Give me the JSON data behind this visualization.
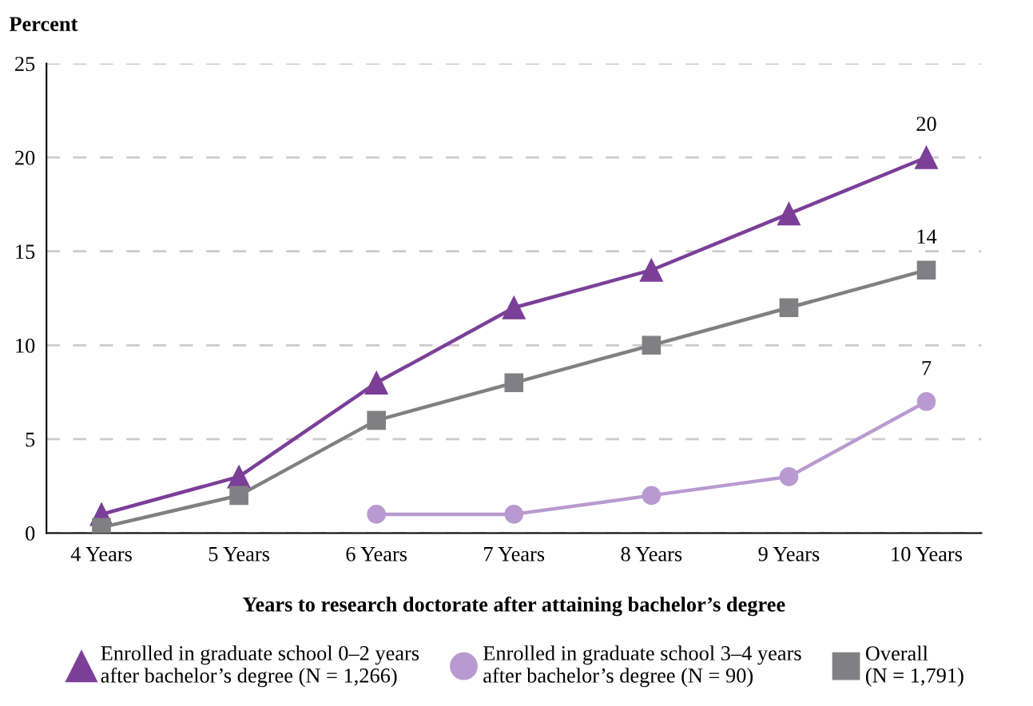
{
  "chart_data": {
    "type": "line",
    "ylabel": "Percent",
    "xlabel": "Years to research doctorate after attaining bachelor’s degree",
    "categories": [
      "4 Years",
      "5 Years",
      "6 Years",
      "7 Years",
      "8 Years",
      "9 Years",
      "10 Years"
    ],
    "series": [
      {
        "name": "Enrolled in graduate school 0–2 years\nafter bachelor’s degree (N = 1,266)",
        "color": "#7b3f98",
        "marker": "triangle",
        "values": [
          1,
          3,
          8,
          12,
          14,
          17,
          20
        ],
        "value_labels": [
          null,
          null,
          null,
          null,
          null,
          null,
          "20"
        ]
      },
      {
        "name": "Enrolled in graduate school 3–4 years\nafter bachelor’s degree (N = 90)",
        "color": "#b99ad0",
        "marker": "circle",
        "values": [
          null,
          null,
          1,
          1,
          2,
          3,
          7
        ],
        "value_labels": [
          null,
          null,
          null,
          null,
          null,
          null,
          "7"
        ]
      },
      {
        "name": "Overall\n(N = 1,791)",
        "color": "#808083",
        "marker": "square",
        "values": [
          0.3,
          2,
          6,
          8,
          10,
          12,
          14
        ],
        "value_labels": [
          null,
          null,
          null,
          null,
          null,
          null,
          "14"
        ]
      }
    ],
    "ylim": [
      0,
      25
    ],
    "yticks": [
      0,
      5,
      10,
      15,
      20,
      25
    ],
    "grid": "y",
    "legend": "bottom",
    "line_style": "solid"
  }
}
